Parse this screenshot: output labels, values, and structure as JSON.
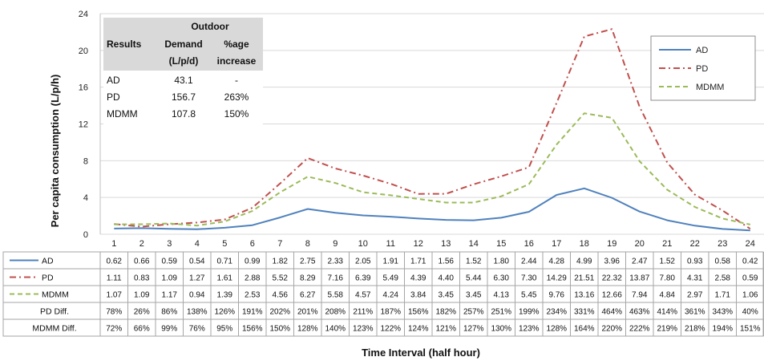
{
  "chart_data": {
    "type": "line",
    "title": "",
    "xlabel": "Time Interval (half hour)",
    "ylabel": "Per capita consumption (L/p/h)",
    "ylim": [
      0,
      24
    ],
    "yticks": [
      0,
      4,
      8,
      12,
      16,
      20,
      24
    ],
    "grid": true,
    "legend_position": "top-right",
    "categories": [
      "1",
      "2",
      "3",
      "4",
      "5",
      "6",
      "7",
      "8",
      "9",
      "10",
      "11",
      "12",
      "13",
      "14",
      "15",
      "16",
      "17",
      "18",
      "19",
      "20",
      "21",
      "22",
      "23",
      "24"
    ],
    "series": [
      {
        "name": "AD",
        "color": "#4f81bd",
        "style": "solid",
        "values": [
          0.62,
          0.66,
          0.59,
          0.54,
          0.71,
          0.99,
          1.82,
          2.75,
          2.33,
          2.05,
          1.91,
          1.71,
          1.56,
          1.52,
          1.8,
          2.44,
          4.28,
          4.99,
          3.96,
          2.47,
          1.52,
          0.93,
          0.58,
          0.42
        ]
      },
      {
        "name": "PD",
        "color": "#c0504d",
        "style": "dashdot",
        "values": [
          1.11,
          0.83,
          1.09,
          1.27,
          1.61,
          2.88,
          5.52,
          8.29,
          7.16,
          6.39,
          5.49,
          4.39,
          4.4,
          5.44,
          6.3,
          7.3,
          14.29,
          21.51,
          22.32,
          13.87,
          7.8,
          4.31,
          2.58,
          0.59
        ]
      },
      {
        "name": "MDMM",
        "color": "#9bbb59",
        "style": "dashed",
        "values": [
          1.07,
          1.09,
          1.17,
          0.94,
          1.39,
          2.53,
          4.56,
          6.27,
          5.58,
          4.57,
          4.24,
          3.84,
          3.45,
          3.45,
          4.13,
          5.45,
          9.76,
          13.16,
          12.66,
          7.94,
          4.84,
          2.97,
          1.71,
          1.06
        ]
      }
    ],
    "table_rows": [
      {
        "label": "PD Diff.",
        "values": [
          "78%",
          "26%",
          "86%",
          "138%",
          "126%",
          "191%",
          "202%",
          "201%",
          "208%",
          "211%",
          "187%",
          "156%",
          "182%",
          "257%",
          "251%",
          "199%",
          "234%",
          "331%",
          "464%",
          "463%",
          "414%",
          "361%",
          "343%",
          "40%"
        ]
      },
      {
        "label": "MDMM Diff.",
        "values": [
          "72%",
          "66%",
          "99%",
          "76%",
          "95%",
          "156%",
          "150%",
          "128%",
          "140%",
          "123%",
          "122%",
          "124%",
          "121%",
          "127%",
          "130%",
          "123%",
          "128%",
          "164%",
          "220%",
          "222%",
          "219%",
          "218%",
          "194%",
          "151%"
        ]
      }
    ],
    "series_table_values": {
      "AD": [
        "0.62",
        "0.66",
        "0.59",
        "0.54",
        "0.71",
        "0.99",
        "1.82",
        "2.75",
        "2.33",
        "2.05",
        "1.91",
        "1.71",
        "1.56",
        "1.52",
        "1.80",
        "2.44",
        "4.28",
        "4.99",
        "3.96",
        "2.47",
        "1.52",
        "0.93",
        "0.58",
        "0.42"
      ],
      "PD": [
        "1.11",
        "0.83",
        "1.09",
        "1.27",
        "1.61",
        "2.88",
        "5.52",
        "8.29",
        "7.16",
        "6.39",
        "5.49",
        "4.39",
        "4.40",
        "5.44",
        "6.30",
        "7.30",
        "14.29",
        "21.51",
        "22.32",
        "13.87",
        "7.80",
        "4.31",
        "2.58",
        "0.59"
      ],
      "MDMM": [
        "1.07",
        "1.09",
        "1.17",
        "0.94",
        "1.39",
        "2.53",
        "4.56",
        "6.27",
        "5.58",
        "4.57",
        "4.24",
        "3.84",
        "3.45",
        "3.45",
        "4.13",
        "5.45",
        "9.76",
        "13.16",
        "12.66",
        "7.94",
        "4.84",
        "2.97",
        "1.71",
        "1.06"
      ]
    },
    "inset_table": {
      "group_header": "Outdoor",
      "headers": [
        "Results",
        "Demand",
        "%age"
      ],
      "subheaders": [
        "",
        "(L/p/d)",
        "increase"
      ],
      "rows": [
        [
          "AD",
          "43.1",
          "-"
        ],
        [
          "PD",
          "156.7",
          "263%"
        ],
        [
          "MDMM",
          "107.8",
          "150%"
        ]
      ]
    }
  }
}
